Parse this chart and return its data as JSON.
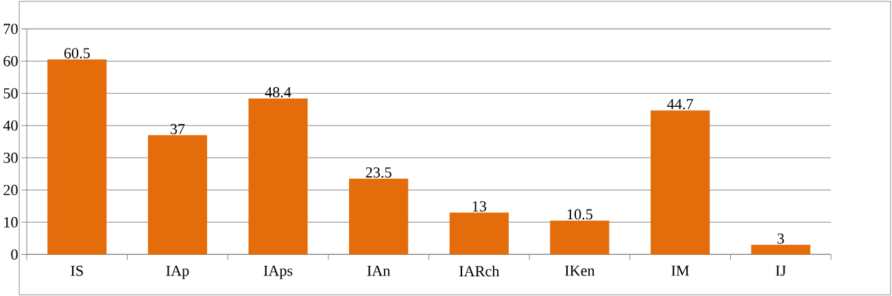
{
  "chart_data": {
    "type": "bar",
    "categories": [
      "IS",
      "IAp",
      "IAps",
      "IAn",
      "IARch",
      "IKen",
      "IM",
      "IJ"
    ],
    "values": [
      60.5,
      37,
      48.4,
      23.5,
      13,
      10.5,
      44.7,
      3
    ],
    "color": "#e46c0a",
    "ylim": [
      0,
      70
    ],
    "yticks": [
      0,
      10,
      20,
      30,
      40,
      50,
      60,
      70
    ],
    "grid": "y",
    "data_labels": true
  }
}
